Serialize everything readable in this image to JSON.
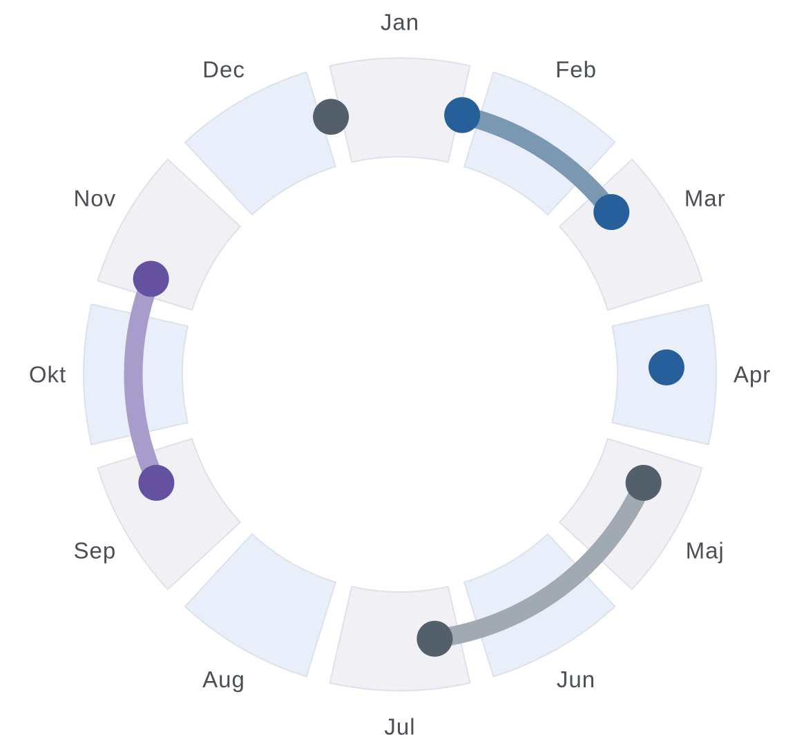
{
  "title": "",
  "months": [
    {
      "label": "Jan"
    },
    {
      "label": "Feb"
    },
    {
      "label": "Mar"
    },
    {
      "label": "Apr"
    },
    {
      "label": "Maj"
    },
    {
      "label": "Jun"
    },
    {
      "label": "Jul"
    },
    {
      "label": "Aug"
    },
    {
      "label": "Sep"
    },
    {
      "label": "Okt"
    },
    {
      "label": "Nov"
    },
    {
      "label": "Dec"
    }
  ],
  "colors": {
    "segment_light_blue": "#e8effb",
    "segment_light_gray": "#f0f0f5",
    "segment_stroke": "#dde2ea",
    "label": "#4a4f57",
    "blue": "#265f99",
    "blue_track": "#7b98b2",
    "slate": "#545f6c",
    "slate_track": "#a1a9b2",
    "purple": "#6451a0",
    "purple_track": "#a79cca"
  },
  "ranges": [
    {
      "name": "range-blue",
      "start": 0.45,
      "end": 1.75,
      "color": "blue",
      "track": "blue_track"
    },
    {
      "name": "range-slate",
      "start": 3.8,
      "end": 5.75,
      "color": "slate",
      "track": "slate_track"
    },
    {
      "name": "range-purple",
      "start": 8.2,
      "end": 9.7,
      "color": "purple",
      "track": "purple_track"
    }
  ],
  "points": [
    {
      "name": "point-blue",
      "position": 2.95,
      "color": "blue"
    },
    {
      "name": "point-slate",
      "position": 11.5,
      "color": "slate"
    }
  ]
}
